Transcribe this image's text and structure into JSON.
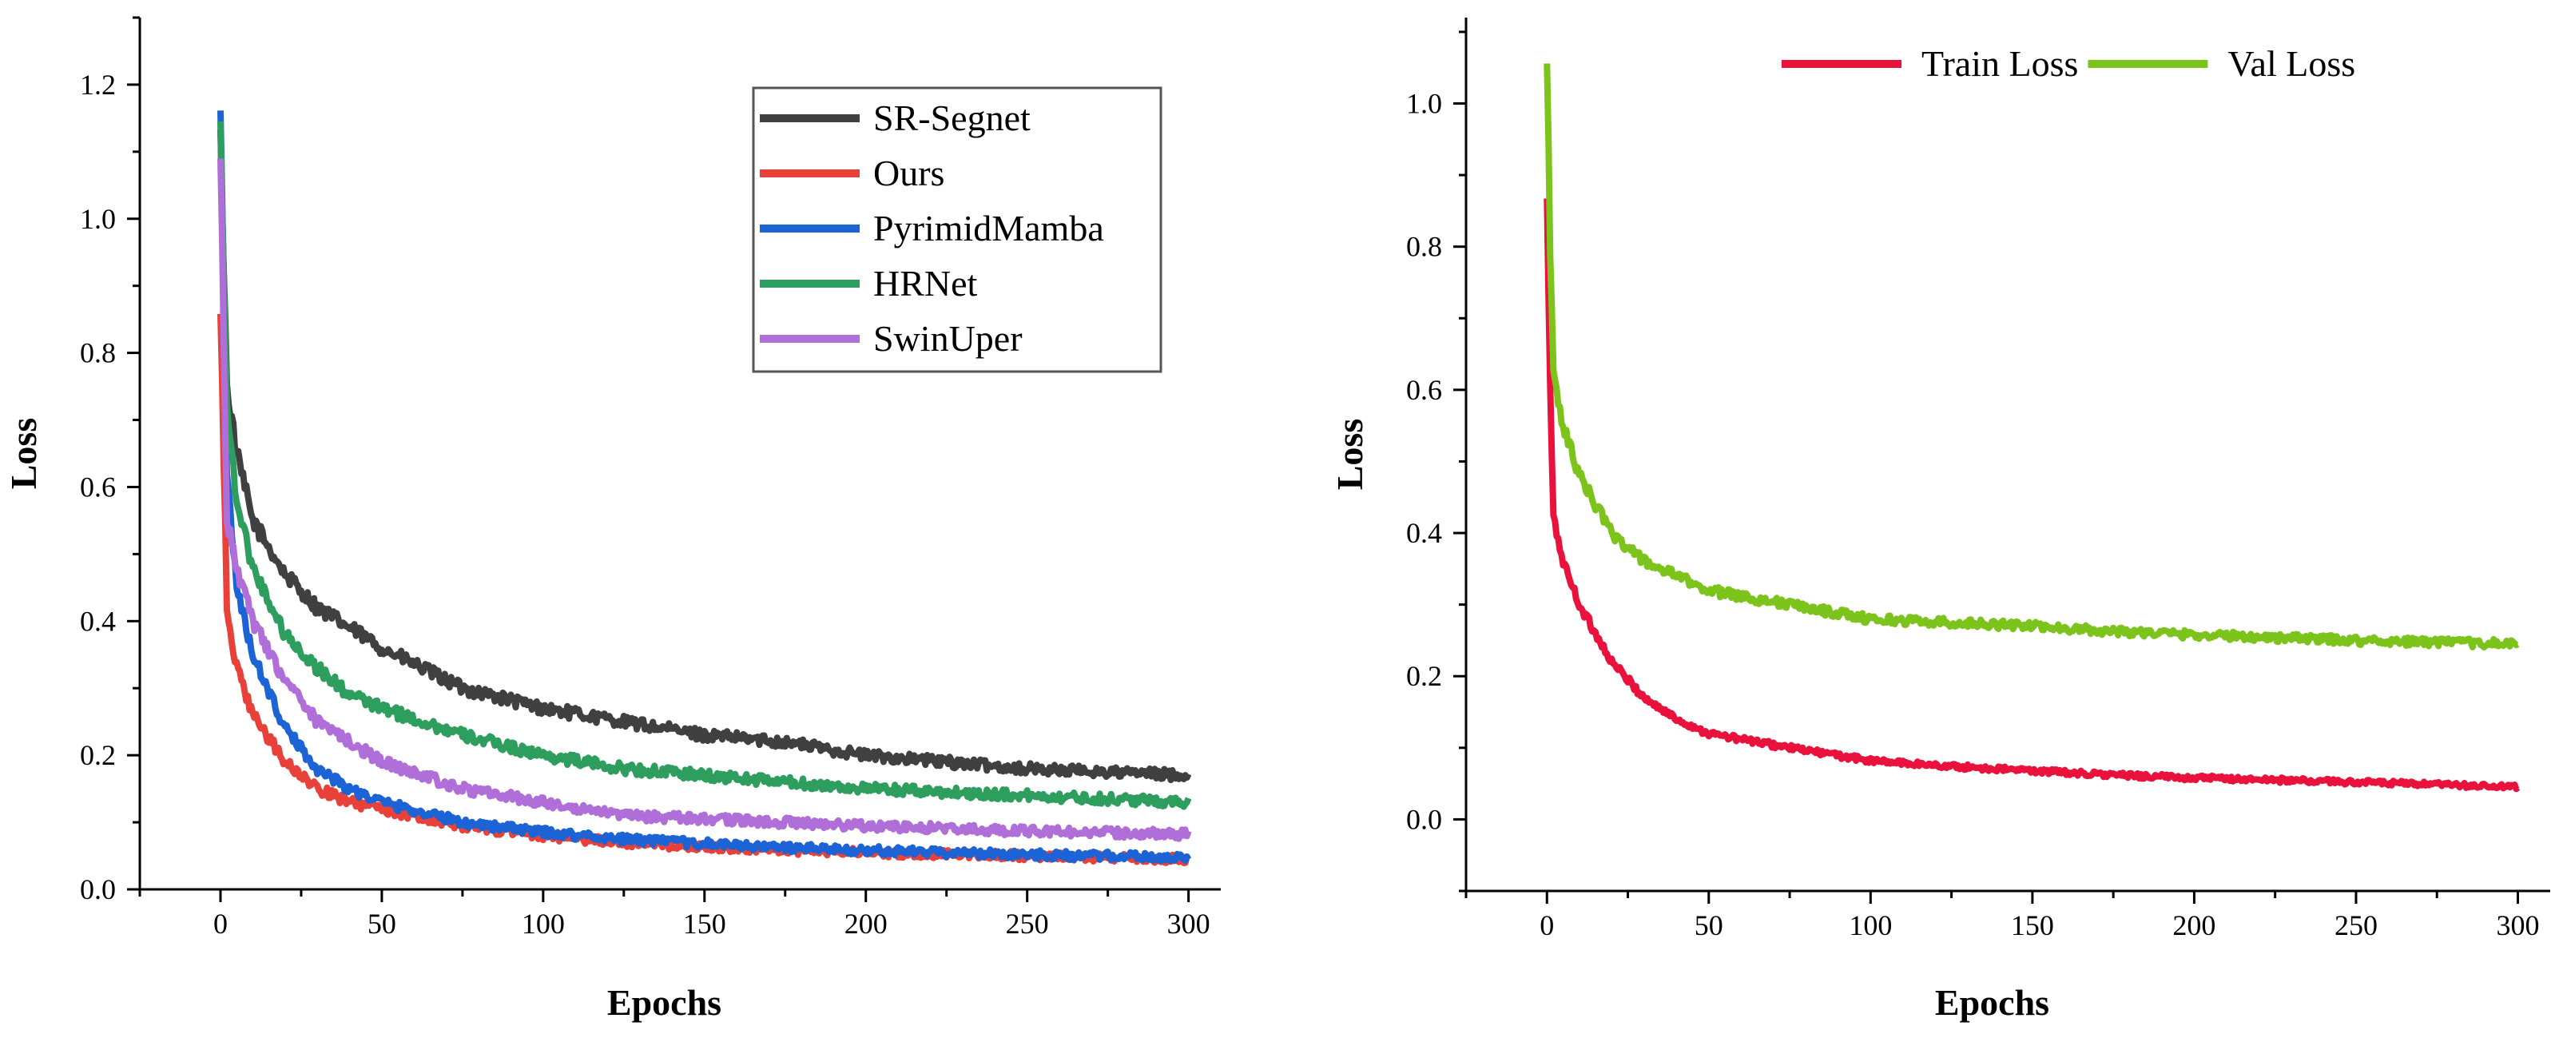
{
  "chart_data": [
    {
      "type": "line",
      "xlabel": "Epochs",
      "ylabel": "Loss",
      "xlim": [
        -25,
        310
      ],
      "ylim": [
        0.0,
        1.3
      ],
      "xticks": [
        0,
        50,
        100,
        150,
        200,
        250,
        300
      ],
      "yticks": [
        0.0,
        0.2,
        0.4,
        0.6,
        0.8,
        1.0,
        1.2
      ],
      "xtick_labels": [
        "0",
        "50",
        "100",
        "150",
        "200",
        "250",
        "300"
      ],
      "ytick_labels": [
        "0.0",
        "0.2",
        "0.4",
        "0.6",
        "0.8",
        "1.0",
        "1.2"
      ],
      "grid": false,
      "legend_position": "top-right",
      "series": [
        {
          "name": "SR-Segnet",
          "color": "#404040",
          "x": [
            0,
            2,
            5,
            10,
            20,
            30,
            40,
            50,
            75,
            100,
            125,
            150,
            175,
            200,
            250,
            300
          ],
          "y": [
            1.12,
            0.75,
            0.65,
            0.55,
            0.47,
            0.42,
            0.39,
            0.36,
            0.3,
            0.27,
            0.25,
            0.23,
            0.22,
            0.2,
            0.18,
            0.17
          ]
        },
        {
          "name": "Ours",
          "color": "#e8413a",
          "x": [
            0,
            2,
            5,
            10,
            20,
            30,
            40,
            50,
            75,
            100,
            125,
            150,
            175,
            200,
            250,
            300
          ],
          "y": [
            0.86,
            0.42,
            0.33,
            0.26,
            0.19,
            0.15,
            0.13,
            0.12,
            0.095,
            0.08,
            0.07,
            0.063,
            0.058,
            0.055,
            0.05,
            0.045
          ]
        },
        {
          "name": "PyrimidMamba",
          "color": "#1c63d6",
          "x": [
            0,
            2,
            5,
            10,
            20,
            30,
            40,
            50,
            75,
            100,
            125,
            150,
            175,
            200,
            250,
            300
          ],
          "y": [
            1.18,
            0.62,
            0.45,
            0.35,
            0.24,
            0.18,
            0.15,
            0.13,
            0.1,
            0.085,
            0.075,
            0.068,
            0.062,
            0.058,
            0.052,
            0.047
          ]
        },
        {
          "name": "HRNet",
          "color": "#2e9e5e",
          "x": [
            0,
            2,
            5,
            10,
            20,
            30,
            40,
            50,
            75,
            100,
            125,
            150,
            175,
            200,
            250,
            300
          ],
          "y": [
            1.14,
            0.72,
            0.58,
            0.48,
            0.38,
            0.33,
            0.29,
            0.27,
            0.23,
            0.2,
            0.18,
            0.17,
            0.16,
            0.15,
            0.14,
            0.13
          ]
        },
        {
          "name": "SwinUper",
          "color": "#b06fd8",
          "x": [
            0,
            2,
            5,
            10,
            20,
            30,
            40,
            50,
            75,
            100,
            125,
            150,
            175,
            200,
            250,
            300
          ],
          "y": [
            1.1,
            0.55,
            0.48,
            0.4,
            0.31,
            0.25,
            0.22,
            0.19,
            0.15,
            0.13,
            0.11,
            0.105,
            0.1,
            0.095,
            0.087,
            0.082
          ]
        }
      ]
    },
    {
      "type": "line",
      "xlabel": "Epochs",
      "ylabel": "Loss",
      "xlim": [
        -25,
        310
      ],
      "ylim": [
        -0.1,
        1.12
      ],
      "xticks": [
        0,
        50,
        100,
        150,
        200,
        250,
        300
      ],
      "yticks": [
        0.0,
        0.2,
        0.4,
        0.6,
        0.8,
        1.0
      ],
      "xtick_labels": [
        "0",
        "50",
        "100",
        "150",
        "200",
        "250",
        "300"
      ],
      "ytick_labels": [
        "0.0",
        "0.2",
        "0.4",
        "0.6",
        "0.8",
        "1.0"
      ],
      "grid": false,
      "legend_position": "top",
      "series": [
        {
          "name": "Train Loss",
          "color": "#e8123c",
          "x": [
            0,
            1,
            2,
            5,
            10,
            15,
            20,
            30,
            40,
            50,
            75,
            100,
            125,
            150,
            175,
            200,
            250,
            300
          ],
          "y": [
            0.86,
            0.6,
            0.42,
            0.36,
            0.3,
            0.26,
            0.22,
            0.17,
            0.14,
            0.12,
            0.1,
            0.082,
            0.074,
            0.068,
            0.062,
            0.058,
            0.052,
            0.045
          ]
        },
        {
          "name": "Val Loss",
          "color": "#7cc41c",
          "x": [
            0,
            1,
            2,
            5,
            10,
            15,
            20,
            30,
            40,
            50,
            75,
            100,
            125,
            150,
            175,
            200,
            250,
            300
          ],
          "y": [
            1.06,
            0.8,
            0.62,
            0.55,
            0.48,
            0.44,
            0.4,
            0.36,
            0.34,
            0.32,
            0.3,
            0.28,
            0.275,
            0.27,
            0.263,
            0.258,
            0.25,
            0.245
          ]
        }
      ]
    }
  ]
}
